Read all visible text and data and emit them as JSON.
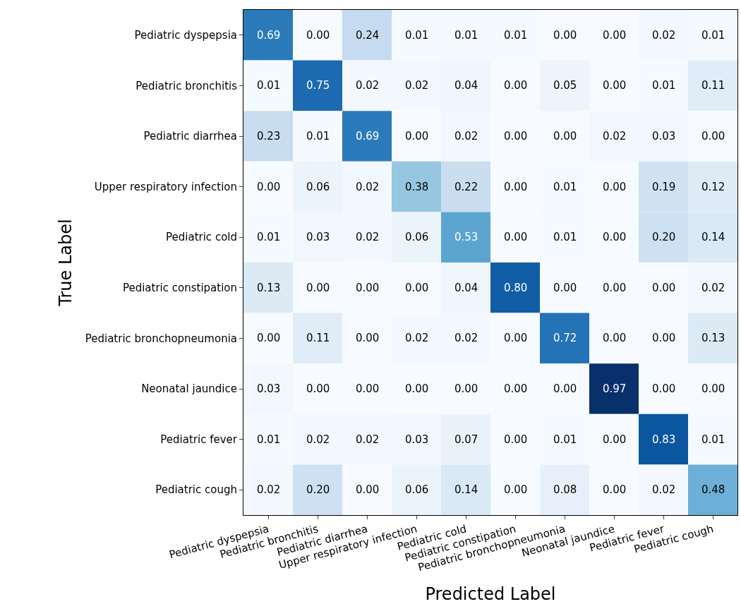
{
  "chart_data": {
    "type": "heatmap",
    "xlabel": "Predicted Label",
    "ylabel": "True Label",
    "categories": [
      "Pediatric dyspepsia",
      "Pediatric bronchitis",
      "Pediatric diarrhea",
      "Upper respiratory infection",
      "Pediatric cold",
      "Pediatric constipation",
      "Pediatric bronchopneumonia",
      "Neonatal jaundice",
      "Pediatric fever",
      "Pediatric cough"
    ],
    "y_categories": [
      "Pediatric dyspepsia",
      "Pediatric bronchitis",
      "Pediatric diarrhea",
      "Upper respiratory infection",
      "Pediatric cold",
      "Pediatric constipation",
      "Pediatric bronchopneumonia",
      "Neonatal jaundice",
      "Pediatric fever",
      "Pediatric cough"
    ],
    "cells": [
      [
        0.69,
        0.0,
        0.24,
        0.01,
        0.01,
        0.01,
        0.0,
        0.0,
        0.02,
        0.01
      ],
      [
        0.01,
        0.75,
        0.02,
        0.02,
        0.04,
        0.0,
        0.05,
        0.0,
        0.01,
        0.11
      ],
      [
        0.23,
        0.01,
        0.69,
        0.0,
        0.02,
        0.0,
        0.0,
        0.02,
        0.03,
        0.0
      ],
      [
        0.0,
        0.06,
        0.02,
        0.38,
        0.22,
        0.0,
        0.01,
        0.0,
        0.19,
        0.12
      ],
      [
        0.01,
        0.03,
        0.02,
        0.06,
        0.53,
        0.0,
        0.01,
        0.0,
        0.2,
        0.14
      ],
      [
        0.13,
        0.0,
        0.0,
        0.0,
        0.04,
        0.8,
        0.0,
        0.0,
        0.0,
        0.02
      ],
      [
        0.0,
        0.11,
        0.0,
        0.02,
        0.02,
        0.0,
        0.72,
        0.0,
        0.0,
        0.13
      ],
      [
        0.03,
        0.0,
        0.0,
        0.0,
        0.0,
        0.0,
        0.0,
        0.97,
        0.0,
        0.0
      ],
      [
        0.01,
        0.02,
        0.02,
        0.03,
        0.07,
        0.0,
        0.01,
        0.0,
        0.83,
        0.01
      ],
      [
        0.02,
        0.2,
        0.0,
        0.06,
        0.14,
        0.0,
        0.08,
        0.0,
        0.02,
        0.48
      ]
    ],
    "cell_labels": [
      [
        "0.69",
        "0.00",
        "0.24",
        "0.01",
        "0.01",
        "0.01",
        "0.00",
        "0.00",
        "0.02",
        "0.01"
      ],
      [
        "0.01",
        "0.75",
        "0.02",
        "0.02",
        "0.04",
        "0.00",
        "0.05",
        "0.00",
        "0.01",
        "0.11"
      ],
      [
        "0.23",
        "0.01",
        "0.69",
        "0.00",
        "0.02",
        "0.00",
        "0.00",
        "0.02",
        "0.03",
        "0.00"
      ],
      [
        "0.00",
        "0.06",
        "0.02",
        "0.38",
        "0.22",
        "0.00",
        "0.01",
        "0.00",
        "0.19",
        "0.12"
      ],
      [
        "0.01",
        "0.03",
        "0.02",
        "0.06",
        "0.53",
        "0.00",
        "0.01",
        "0.00",
        "0.20",
        "0.14"
      ],
      [
        "0.13",
        "0.00",
        "0.00",
        "0.00",
        "0.04",
        "0.80",
        "0.00",
        "0.00",
        "0.00",
        "0.02"
      ],
      [
        "0.00",
        "0.11",
        "0.00",
        "0.02",
        "0.02",
        "0.00",
        "0.72",
        "0.00",
        "0.00",
        "0.13"
      ],
      [
        "0.03",
        "0.00",
        "0.00",
        "0.00",
        "0.00",
        "0.00",
        "0.00",
        "0.97",
        "0.00",
        "0.00"
      ],
      [
        "0.01",
        "0.02",
        "0.02",
        "0.03",
        "0.07",
        "0.00",
        "0.01",
        "0.00",
        "0.83",
        "0.01"
      ],
      [
        "0.02",
        "0.20",
        "0.00",
        "0.06",
        "0.14",
        "0.00",
        "0.08",
        "0.00",
        "0.02",
        "0.48"
      ]
    ]
  }
}
